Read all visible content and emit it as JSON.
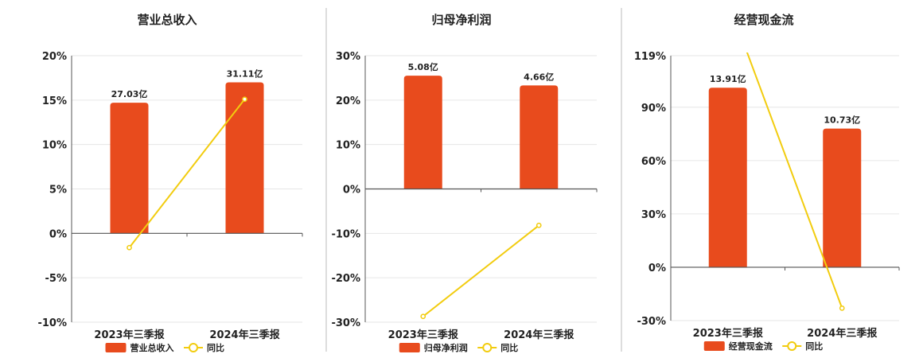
{
  "colors": {
    "bar": "#E84B1D",
    "line": "#F2CC0F",
    "grid": "#E6E6E6",
    "axis": "#555555",
    "divider": "#BBBBBB"
  },
  "chart_data": [
    {
      "type": "bar",
      "title": "营业总收入",
      "categories": [
        "2023年三季报",
        "2024年三季报"
      ],
      "ylim": [
        -10,
        20
      ],
      "ticks": [
        20,
        15,
        10,
        5,
        0,
        -5,
        -10
      ],
      "tick_labels": [
        "20%",
        "15%",
        "10%",
        "5%",
        "0%",
        "-5%",
        "-10%"
      ],
      "grid": true,
      "series": [
        {
          "name": "营业总收入",
          "kind": "bar",
          "values": [
            14.7,
            17.0
          ],
          "labels": [
            "27.03亿",
            "31.11亿"
          ]
        },
        {
          "name": "同比",
          "kind": "line",
          "values": [
            -1.6,
            15.1
          ]
        }
      ],
      "legend": {
        "position": "bottom",
        "items": [
          "营业总收入",
          "同比"
        ]
      }
    },
    {
      "type": "bar",
      "title": "归母净利润",
      "categories": [
        "2023年三季报",
        "2024年三季报"
      ],
      "ylim": [
        -30,
        30
      ],
      "ticks": [
        30,
        20,
        10,
        0,
        -10,
        -20,
        -30
      ],
      "tick_labels": [
        "30%",
        "20%",
        "10%",
        "0%",
        "-10%",
        "-20%",
        "-30%"
      ],
      "grid": true,
      "series": [
        {
          "name": "归母净利润",
          "kind": "bar",
          "values": [
            25.5,
            23.3
          ],
          "labels": [
            "5.08亿",
            "4.66亿"
          ]
        },
        {
          "name": "同比",
          "kind": "line",
          "values": [
            -28.7,
            -8.2
          ]
        }
      ],
      "legend": {
        "position": "bottom",
        "items": [
          "归母净利润",
          "同比"
        ]
      }
    },
    {
      "type": "bar",
      "title": "经营现金流",
      "categories": [
        "2023年三季报",
        "2024年三季报"
      ],
      "ylim": [
        -30,
        119
      ],
      "ticks": [
        119,
        90,
        60,
        30,
        0,
        -30
      ],
      "tick_labels": [
        "119%",
        "90%",
        "60%",
        "30%",
        "0%",
        "-30%"
      ],
      "grid": true,
      "series": [
        {
          "name": "经营现金流",
          "kind": "bar",
          "values": [
            101,
            78
          ],
          "labels": [
            "13.91亿",
            "10.73亿"
          ]
        },
        {
          "name": "同比",
          "kind": "line",
          "values": [
            150,
            -23
          ]
        }
      ],
      "legend": {
        "position": "bottom",
        "items": [
          "经营现金流",
          "同比"
        ]
      }
    }
  ]
}
